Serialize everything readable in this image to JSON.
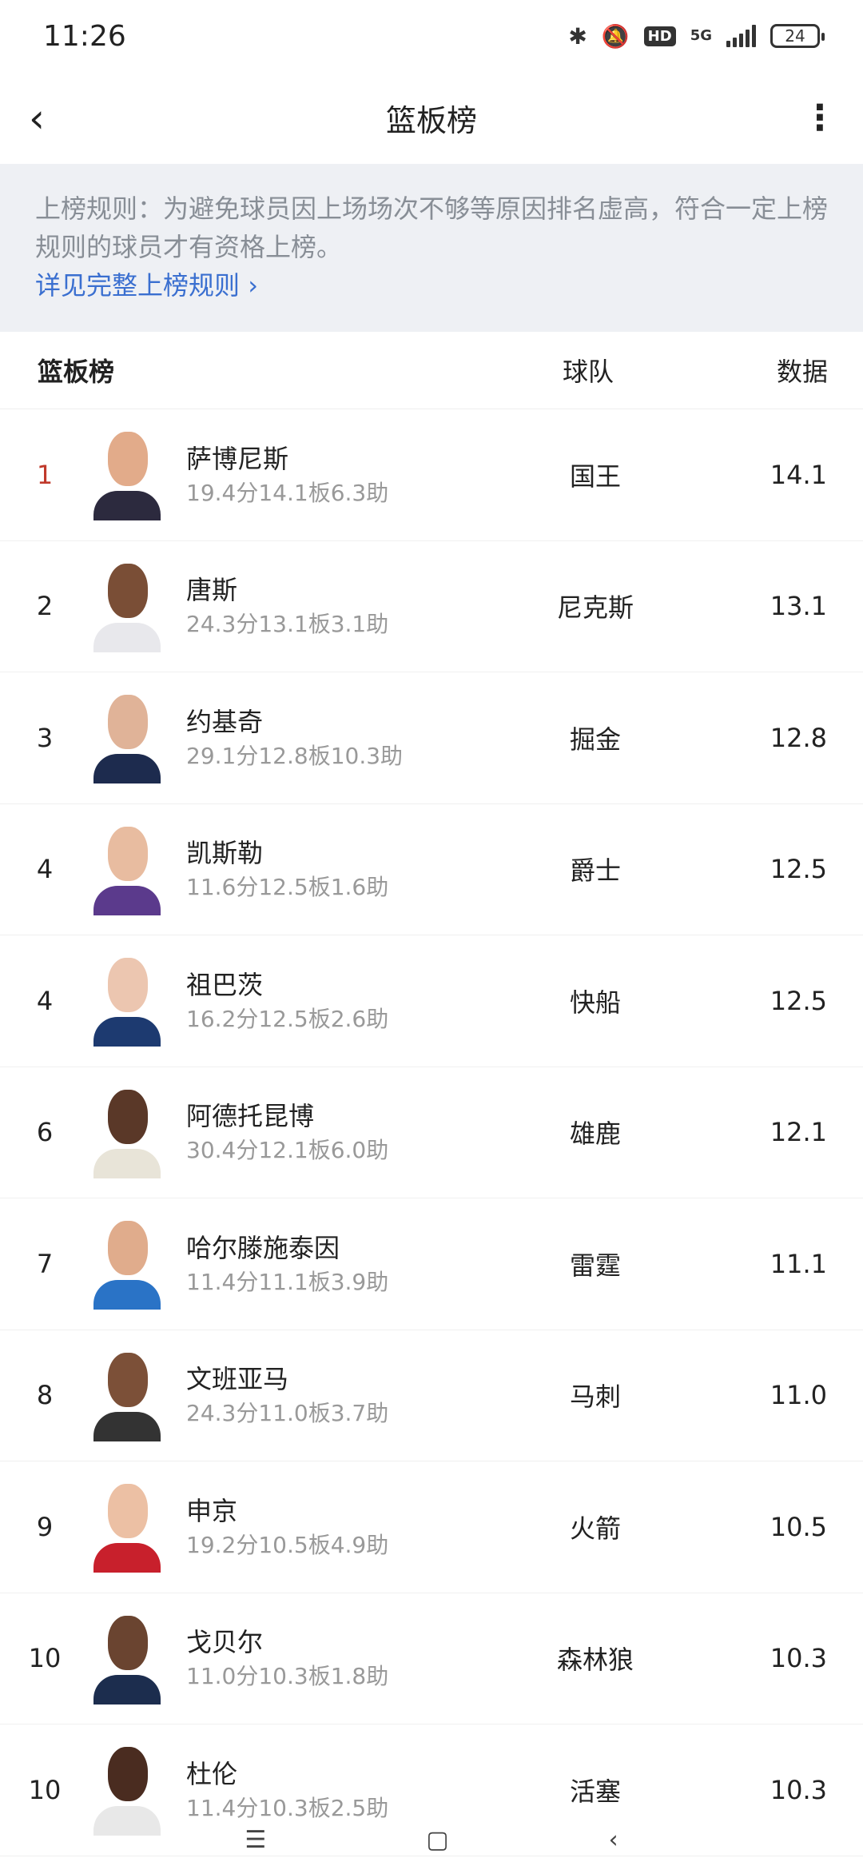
{
  "status_bar": {
    "time": "11:26",
    "network": "5G",
    "hd": "HD",
    "battery": "24"
  },
  "header": {
    "title": "篮板榜",
    "back_icon": "chevron-left-icon",
    "more_icon": "more-vertical-icon"
  },
  "notice": {
    "text": "上榜规则：为避免球员因上场场次不够等原因排名虚高，符合一定上榜规则的球员才有资格上榜。",
    "link": "详见完整上榜规则",
    "link_color": "#3a6fd0"
  },
  "table": {
    "headers": [
      "篮板榜",
      "球队",
      "数据"
    ],
    "rows": [
      {
        "rank": "1",
        "name": "萨博尼斯",
        "stats": "19.4分14.1板6.3助",
        "team": "国王",
        "value": "14.1",
        "jersey": "#2c2a3e",
        "skin": "#e2ab8a"
      },
      {
        "rank": "2",
        "name": "唐斯",
        "stats": "24.3分13.1板3.1助",
        "team": "尼克斯",
        "value": "13.1",
        "jersey": "#e8e8ec",
        "skin": "#7a4e36"
      },
      {
        "rank": "3",
        "name": "约基奇",
        "stats": "29.1分12.8板10.3助",
        "team": "掘金",
        "value": "12.8",
        "jersey": "#1d2b4e",
        "skin": "#e0b398"
      },
      {
        "rank": "4",
        "name": "凯斯勒",
        "stats": "11.6分12.5板1.6助",
        "team": "爵士",
        "value": "12.5",
        "jersey": "#5b3a8c",
        "skin": "#e8bca0"
      },
      {
        "rank": "4",
        "name": "祖巴茨",
        "stats": "16.2分12.5板2.6助",
        "team": "快船",
        "value": "12.5",
        "jersey": "#1d3a70",
        "skin": "#ecc6b0"
      },
      {
        "rank": "6",
        "name": "阿德托昆博",
        "stats": "30.4分12.1板6.0助",
        "team": "雄鹿",
        "value": "12.1",
        "jersey": "#e8e4d8",
        "skin": "#5a3828"
      },
      {
        "rank": "7",
        "name": "哈尔滕施泰因",
        "stats": "11.4分11.1板3.9助",
        "team": "雷霆",
        "value": "11.1",
        "jersey": "#2a73c6",
        "skin": "#e0ac8c"
      },
      {
        "rank": "8",
        "name": "文班亚马",
        "stats": "24.3分11.0板3.7助",
        "team": "马刺",
        "value": "11.0",
        "jersey": "#333",
        "skin": "#7c5038"
      },
      {
        "rank": "9",
        "name": "申京",
        "stats": "19.2分10.5板4.9助",
        "team": "火箭",
        "value": "10.5",
        "jersey": "#c8202c",
        "skin": "#ecc0a4"
      },
      {
        "rank": "10",
        "name": "戈贝尔",
        "stats": "11.0分10.3板1.8助",
        "team": "森林狼",
        "value": "10.3",
        "jersey": "#1c2d4e",
        "skin": "#6a4430"
      },
      {
        "rank": "10",
        "name": "杜伦",
        "stats": "11.4分10.3板2.5助",
        "team": "活塞",
        "value": "10.3",
        "jersey": "#e8e8e8",
        "skin": "#4a2c20"
      }
    ]
  },
  "colors": {
    "top_rank": "#c0392b",
    "notice_bg": "#eef0f4"
  }
}
